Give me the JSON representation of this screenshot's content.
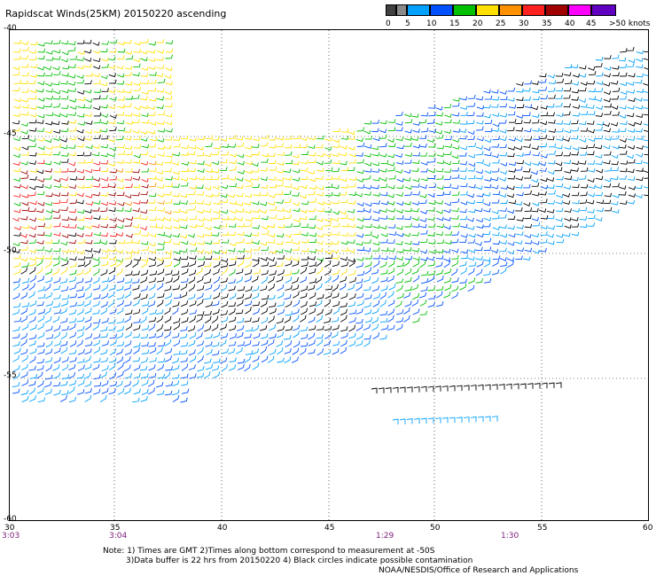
{
  "title": "Rapidscat Winds(25KM) 20150220 ascending",
  "legend": {
    "tick_labels": [
      "0",
      "5",
      "10",
      "15",
      "20",
      "25",
      "30",
      "35",
      "40",
      "45",
      ">50 knots"
    ],
    "colors": [
      "#404040",
      "#8a8a8a",
      "#00a0ff",
      "#0050ff",
      "#00c000",
      "#ffe000",
      "#ff9000",
      "#ff2020",
      "#a00000",
      "#ff00ff",
      "#6000c0"
    ]
  },
  "axes": {
    "lat_labels": [
      "-40",
      "-45",
      "-50",
      "-55",
      "-60"
    ],
    "lon_labels": [
      "30",
      "35",
      "40",
      "45",
      "50",
      "55",
      "60"
    ],
    "time_labels": [
      "3:03",
      "3:04",
      "1:29",
      "1:30"
    ]
  },
  "notes": {
    "line1": "Note: 1) Times are GMT 2)Times along bottom correspond to measurement at -50S",
    "line2": "3)Data buffer is 22 hrs from 20150220 4) Black circles indicate possible contamination",
    "line3": "NOAA/NESDIS/Office of Research and Applications"
  }
}
